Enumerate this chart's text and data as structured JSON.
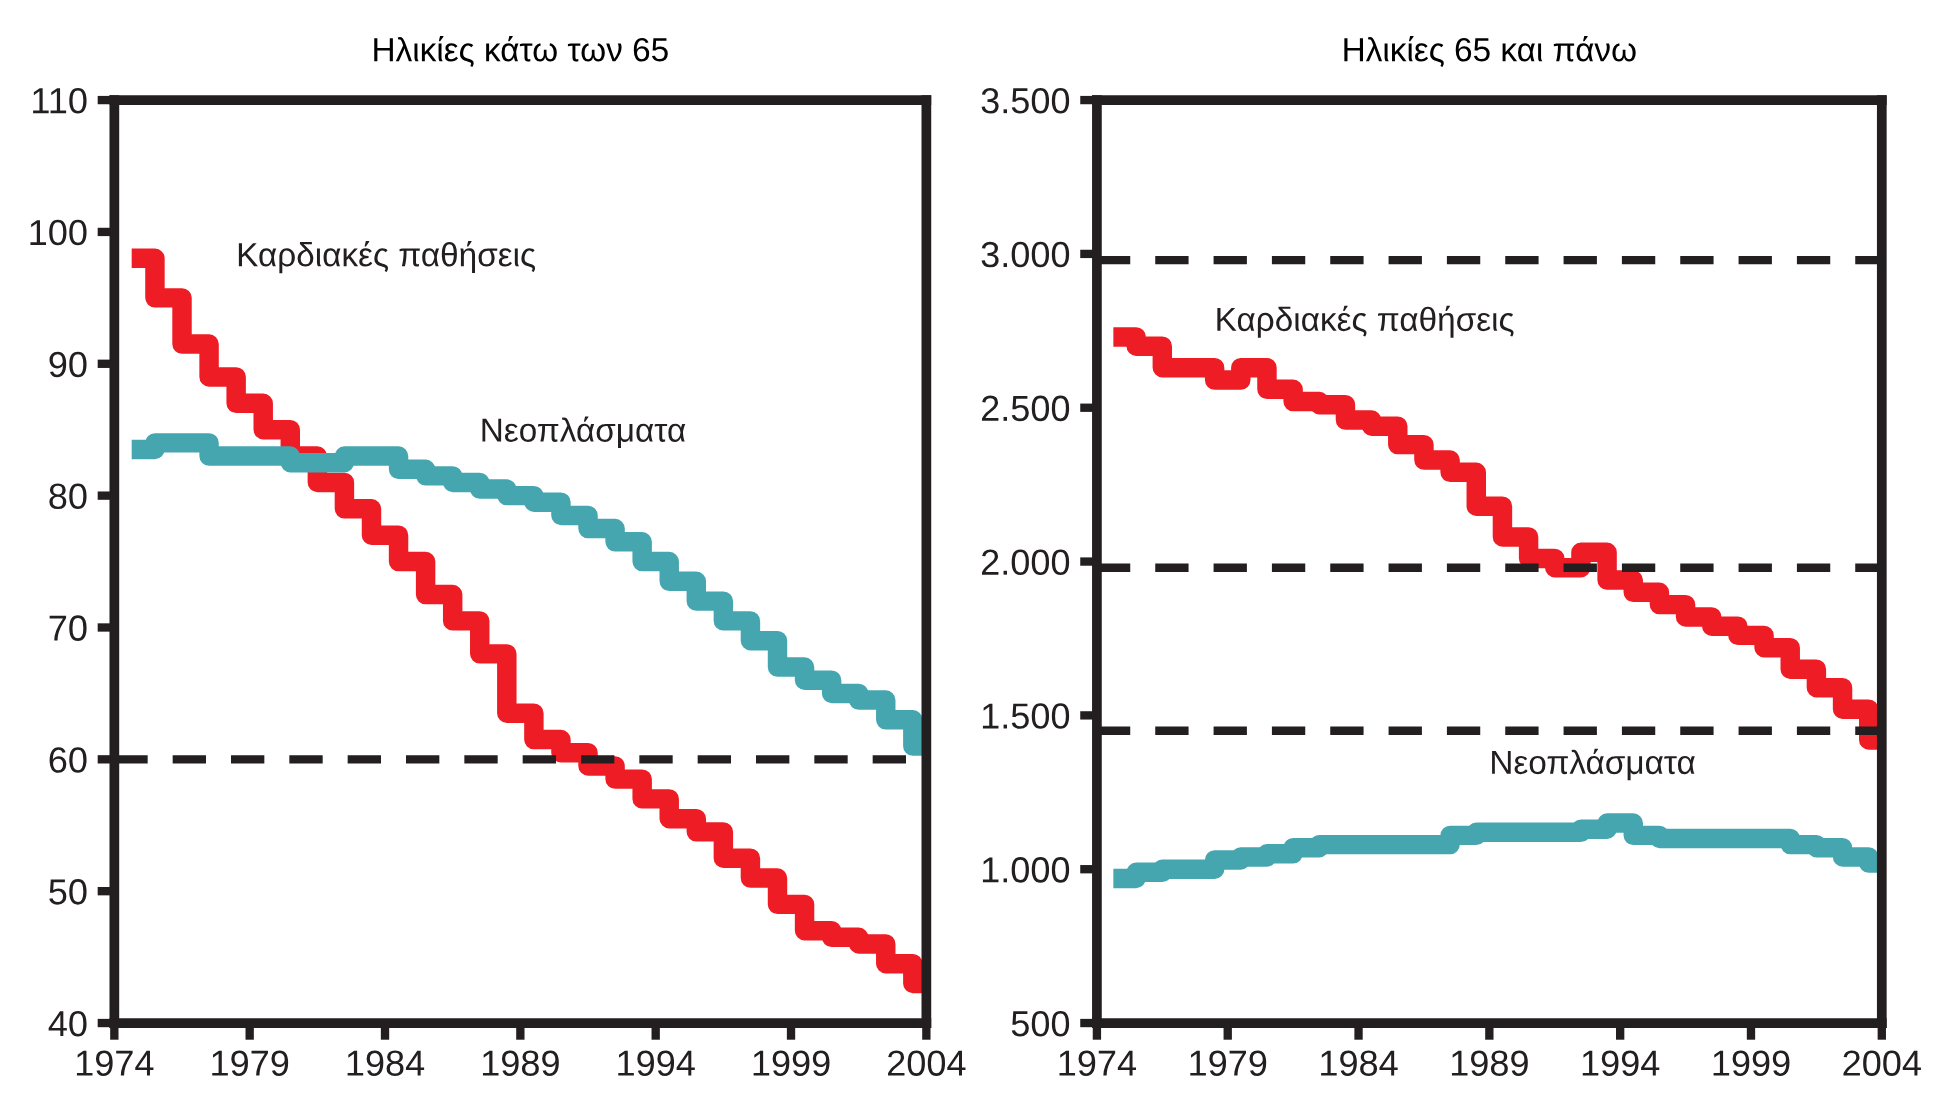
{
  "chart_data": [
    {
      "type": "step",
      "title": "Ηλικίες κάτω των 65",
      "x": [
        1975,
        1976,
        1977,
        1978,
        1979,
        1980,
        1981,
        1982,
        1983,
        1984,
        1985,
        1986,
        1987,
        1988,
        1989,
        1990,
        1991,
        1992,
        1993,
        1994,
        1995,
        1996,
        1997,
        1998,
        1999,
        2000,
        2001,
        2002,
        2003,
        2004
      ],
      "series": [
        {
          "name": "Καρδιακές παθήσεις",
          "color": "#ee1c25",
          "values": [
            98,
            95,
            91.5,
            89,
            87,
            85,
            83,
            81,
            79,
            77,
            75,
            72.5,
            70.5,
            68,
            63.5,
            61.5,
            60.5,
            59.5,
            58.5,
            57,
            55.5,
            54.5,
            52.5,
            51,
            49,
            47,
            46.5,
            46,
            44.5,
            43
          ]
        },
        {
          "name": "Νεοπλάσματα",
          "color": "#46a6b0",
          "values": [
            83.5,
            84,
            84,
            83,
            83,
            83,
            82.5,
            82.5,
            83,
            83,
            82,
            81.5,
            81,
            80.5,
            80,
            79.5,
            78.5,
            77.5,
            76.5,
            75,
            73.5,
            72,
            70.5,
            69,
            67,
            66,
            65,
            64.5,
            63,
            61
          ]
        }
      ],
      "xlim": [
        1974,
        2004
      ],
      "xticks": [
        1974,
        1979,
        1984,
        1989,
        1994,
        1999,
        2004
      ],
      "ylim": [
        40,
        110
      ],
      "yticks": [
        40,
        50,
        60,
        70,
        80,
        90,
        100,
        110
      ],
      "ref_lines": [
        {
          "axis": "y",
          "value": 60,
          "color": "#231f20",
          "line_style": "dashed"
        }
      ],
      "grid": false,
      "legend": false
    },
    {
      "type": "step",
      "title": "Ηλικίες 65 και πάνω",
      "x": [
        1975,
        1976,
        1977,
        1978,
        1979,
        1980,
        1981,
        1982,
        1983,
        1984,
        1985,
        1986,
        1987,
        1988,
        1989,
        1990,
        1991,
        1992,
        1993,
        1994,
        1995,
        1996,
        1997,
        1998,
        1999,
        2000,
        2001,
        2002,
        2003,
        2004
      ],
      "series": [
        {
          "name": "Καρδιακές παθήσεις",
          "color": "#ee1c25",
          "values": [
            2730,
            2700,
            2630,
            2630,
            2590,
            2630,
            2560,
            2520,
            2510,
            2460,
            2440,
            2380,
            2330,
            2290,
            2180,
            2080,
            2010,
            1980,
            2030,
            1940,
            1900,
            1860,
            1820,
            1790,
            1760,
            1720,
            1650,
            1590,
            1520,
            1420
          ]
        },
        {
          "name": "Νεοπλάσματα",
          "color": "#46a6b0",
          "values": [
            970,
            990,
            1000,
            1000,
            1030,
            1040,
            1050,
            1070,
            1080,
            1080,
            1080,
            1080,
            1080,
            1110,
            1120,
            1120,
            1120,
            1120,
            1130,
            1150,
            1110,
            1100,
            1100,
            1100,
            1100,
            1100,
            1080,
            1070,
            1040,
            1020
          ]
        }
      ],
      "xlim": [
        1974,
        2004
      ],
      "xticks": [
        1974,
        1979,
        1984,
        1989,
        1994,
        1999,
        2004
      ],
      "ylim": [
        500,
        3500
      ],
      "yticks": [
        500,
        {
          "value": 1000,
          "label": "1.000"
        },
        {
          "value": 1500,
          "label": "1.500"
        },
        {
          "value": 2000,
          "label": "2.000"
        },
        {
          "value": 2500,
          "label": "2.500"
        },
        {
          "value": 3000,
          "label": "3.000"
        },
        {
          "value": 3500,
          "label": "3.500"
        }
      ],
      "ref_lines": [
        {
          "axis": "y",
          "value": 2980,
          "color": "#231f20",
          "line_style": "dashed"
        },
        {
          "axis": "y",
          "value": 1980,
          "color": "#231f20",
          "line_style": "dashed"
        },
        {
          "axis": "y",
          "value": 1450,
          "color": "#231f20",
          "line_style": "dashed"
        }
      ],
      "grid": false,
      "legend": false
    }
  ]
}
